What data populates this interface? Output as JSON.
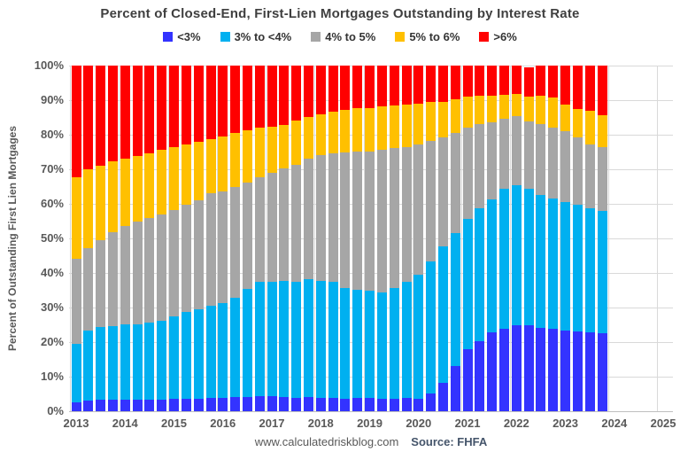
{
  "title": "Percent of Closed-End, First-Lien Mortgages Outstanding by Interest Rate",
  "y_axis_title": "Percent of Outstanding First Lien Mortgages",
  "footer": {
    "website": "www.calculatedriskblog.com",
    "source": "Source: FHFA"
  },
  "legend": [
    {
      "label": "<3%",
      "color": "#3333FF"
    },
    {
      "label": "3% to <4%",
      "color": "#00B0F0"
    },
    {
      "label": "4% to 5%",
      "color": "#A6A6A6"
    },
    {
      "label": "5% to 6%",
      "color": "#FFC000"
    },
    {
      "label": ">6%",
      "color": "#FF0000"
    }
  ],
  "y_ticks": [
    "100%",
    "90%",
    "80%",
    "70%",
    "60%",
    "50%",
    "40%",
    "30%",
    "20%",
    "10%",
    "0%"
  ],
  "x_ticks": [
    "2013",
    "2014",
    "2015",
    "2016",
    "2017",
    "2018",
    "2019",
    "2020",
    "2021",
    "2022",
    "2023",
    "2024",
    "2025"
  ],
  "colors": {
    "grid": "#D9D9D9",
    "axis_line": "#BFBFBF",
    "title_text": "#3F3F3F",
    "tick_text": "#595959"
  },
  "chart_data": {
    "type": "bar",
    "stacked": true,
    "unit": "percent of outstanding first lien mortgages",
    "title": "Percent of Closed-End, First-Lien Mortgages Outstanding by Interest Rate",
    "xlabel": "",
    "ylabel": "Percent of Outstanding First Lien Mortgages",
    "ylim": [
      0,
      100
    ],
    "grid": true,
    "legend_position": "top",
    "categories": [
      "2013 Q1",
      "2013 Q2",
      "2013 Q3",
      "2013 Q4",
      "2014 Q1",
      "2014 Q2",
      "2014 Q3",
      "2014 Q4",
      "2015 Q1",
      "2015 Q2",
      "2015 Q3",
      "2015 Q4",
      "2016 Q1",
      "2016 Q2",
      "2016 Q3",
      "2016 Q4",
      "2017 Q1",
      "2017 Q2",
      "2017 Q3",
      "2017 Q4",
      "2018 Q1",
      "2018 Q2",
      "2018 Q3",
      "2018 Q4",
      "2019 Q1",
      "2019 Q2",
      "2019 Q3",
      "2019 Q4",
      "2020 Q1",
      "2020 Q2",
      "2020 Q3",
      "2020 Q4",
      "2021 Q1",
      "2021 Q2",
      "2021 Q3",
      "2021 Q4",
      "2022 Q1",
      "2022 Q2",
      "2022 Q3",
      "2022 Q4",
      "2023 Q1",
      "2023 Q2",
      "2023 Q3",
      "2023 Q4"
    ],
    "series": [
      {
        "name": "<3%",
        "color": "#3333FF",
        "values": [
          2.5,
          3.2,
          3.3,
          3.3,
          3.3,
          3.3,
          3.3,
          3.3,
          3.5,
          3.5,
          3.5,
          3.8,
          3.9,
          4.1,
          4.1,
          4.3,
          4.3,
          4.1,
          3.8,
          4.1,
          3.9,
          3.9,
          3.5,
          3.8,
          3.8,
          3.6,
          3.6,
          3.8,
          3.6,
          5.1,
          8.3,
          13.0,
          17.9,
          20.3,
          22.7,
          23.8,
          24.8,
          24.9,
          24.2,
          23.8,
          23.4,
          23.1,
          22.8,
          22.5
        ]
      },
      {
        "name": "3% to <4%",
        "color": "#00B0F0",
        "values": [
          17.1,
          20.1,
          21.1,
          21.4,
          21.9,
          21.9,
          22.3,
          22.9,
          24.0,
          25.3,
          25.9,
          26.7,
          27.5,
          28.8,
          31.4,
          33.2,
          33.2,
          33.7,
          33.7,
          34.1,
          33.9,
          33.6,
          32.1,
          31.4,
          31.0,
          30.8,
          32.0,
          33.6,
          35.9,
          38.2,
          39.3,
          38.5,
          37.8,
          38.4,
          38.6,
          40.5,
          40.6,
          39.4,
          38.4,
          37.7,
          37.2,
          36.7,
          35.9,
          35.5
        ]
      },
      {
        "name": "4% to 5%",
        "color": "#A6A6A6",
        "values": [
          24.4,
          24.0,
          25.1,
          27.0,
          28.4,
          29.7,
          30.3,
          30.8,
          30.8,
          31.0,
          31.6,
          32.5,
          32.3,
          32.0,
          30.7,
          30.2,
          31.5,
          32.5,
          33.9,
          34.8,
          36.3,
          37.0,
          39.2,
          39.9,
          40.3,
          41.2,
          40.6,
          39.0,
          37.7,
          35.0,
          31.6,
          29.0,
          26.3,
          24.4,
          22.2,
          20.2,
          20.0,
          19.5,
          20.5,
          20.5,
          20.4,
          19.5,
          18.6,
          18.5
        ]
      },
      {
        "name": "5% to 6%",
        "color": "#FFC000",
        "values": [
          23.7,
          22.7,
          21.5,
          20.5,
          19.4,
          19.0,
          18.8,
          18.6,
          18.1,
          17.5,
          17.0,
          15.7,
          15.8,
          15.6,
          15.0,
          14.4,
          13.4,
          12.6,
          12.7,
          12.2,
          11.8,
          12.2,
          12.3,
          12.5,
          12.6,
          12.5,
          12.3,
          12.4,
          11.9,
          11.1,
          10.3,
          9.7,
          9.0,
          8.2,
          7.8,
          7.1,
          6.5,
          7.2,
          8.1,
          8.8,
          7.6,
          8.2,
          9.5,
          9.2
        ]
      },
      {
        "name": ">6%",
        "color": "#FF0000",
        "values": [
          32.3,
          30.0,
          29.0,
          27.8,
          27.0,
          26.1,
          25.3,
          24.4,
          23.6,
          22.7,
          22.0,
          21.3,
          20.5,
          19.5,
          18.8,
          17.9,
          17.6,
          17.1,
          15.9,
          14.8,
          14.1,
          13.3,
          12.9,
          12.4,
          12.3,
          11.9,
          11.5,
          11.2,
          10.9,
          10.6,
          10.5,
          9.8,
          9.0,
          8.7,
          8.7,
          8.4,
          8.1,
          8.4,
          8.8,
          9.2,
          11.4,
          12.5,
          13.2,
          14.3
        ]
      }
    ]
  }
}
